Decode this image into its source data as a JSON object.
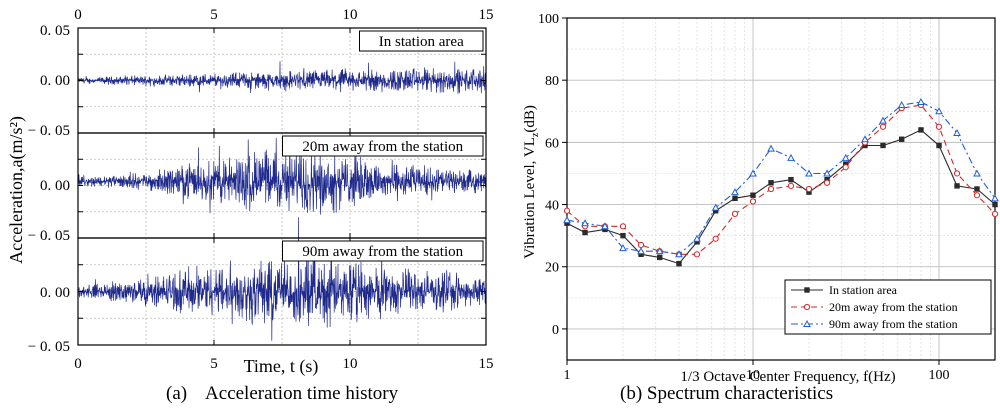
{
  "captions": {
    "a": "(a)    Acceleration time history",
    "b": "(b) Spectrum characteristics"
  },
  "colors": {
    "signal": "#1f2a8c",
    "grid": "#bdbdbd",
    "s1": "#2b2b2b",
    "s2": "#d62728",
    "s3": "#1f5fd6"
  },
  "chart_data": [
    {
      "type": "line",
      "name": "Acceleration time history",
      "xlabel": "Time, t (s)",
      "ylabel": "Acceleration,a(m/s²)",
      "xlim": [
        0,
        15
      ],
      "xticks": [
        0,
        5,
        10,
        15
      ],
      "ylim": [
        -0.05,
        0.05
      ],
      "yticks": [
        0.05,
        0.0,
        -0.05
      ],
      "ytick_labels": [
        "0. 05",
        "0. 00",
        "− 0. 05",
        "0. 00",
        "− 0. 05",
        "0. 00",
        "− 0. 05"
      ],
      "panels": [
        {
          "label": "In station area",
          "baseline": 0.0,
          "amplitude_envelope": [
            {
              "t": 0,
              "a": 0.002
            },
            {
              "t": 3,
              "a": 0.004
            },
            {
              "t": 6,
              "a": 0.006
            },
            {
              "t": 9,
              "a": 0.008
            },
            {
              "t": 12,
              "a": 0.009
            },
            {
              "t": 15,
              "a": 0.009
            }
          ]
        },
        {
          "label": "20m away from the station",
          "baseline": 0.004,
          "amplitude_envelope": [
            {
              "t": 0,
              "a": 0.003
            },
            {
              "t": 2.5,
              "a": 0.006
            },
            {
              "t": 5,
              "a": 0.016
            },
            {
              "t": 7,
              "a": 0.024
            },
            {
              "t": 9,
              "a": 0.022
            },
            {
              "t": 11,
              "a": 0.016
            },
            {
              "t": 13,
              "a": 0.01
            },
            {
              "t": 15,
              "a": 0.007
            }
          ]
        },
        {
          "label": "90m away from the station",
          "baseline": 0.0,
          "amplitude_envelope": [
            {
              "t": 0,
              "a": 0.004
            },
            {
              "t": 2,
              "a": 0.008
            },
            {
              "t": 4,
              "a": 0.016
            },
            {
              "t": 6,
              "a": 0.022
            },
            {
              "t": 8,
              "a": 0.025
            },
            {
              "t": 10,
              "a": 0.022
            },
            {
              "t": 12,
              "a": 0.016
            },
            {
              "t": 14,
              "a": 0.012
            },
            {
              "t": 15,
              "a": 0.01
            }
          ]
        }
      ]
    },
    {
      "type": "line",
      "name": "Spectrum characteristics",
      "xlabel": "1/3 Octave Center Frequency, f(Hz)",
      "ylabel": "Vibration Level, VLz(dB)",
      "ylabel_main": "Vibration Level, VL",
      "ylabel_sub": "z",
      "ylabel_tail": "(dB)",
      "xscale": "log",
      "xlim": [
        1,
        200
      ],
      "xticks": [
        1,
        10,
        100
      ],
      "ylim": [
        -10,
        100
      ],
      "yticks": [
        0,
        20,
        40,
        60,
        80,
        100
      ],
      "legend_position": "bottom-right",
      "x": [
        1,
        1.25,
        1.6,
        2,
        2.5,
        3.15,
        4,
        5,
        6.3,
        8,
        10,
        12.5,
        16,
        20,
        25,
        31.5,
        40,
        50,
        63,
        80,
        100,
        125,
        160,
        200
      ],
      "series": [
        {
          "name": "In station area",
          "marker": "square",
          "dash": "",
          "values": [
            34,
            31,
            32,
            30,
            24,
            23,
            21,
            28,
            38,
            42,
            43,
            47,
            48,
            44,
            48,
            53,
            59,
            59,
            61,
            64,
            59,
            46,
            45,
            40
          ]
        },
        {
          "name": "20m away from the station",
          "marker": "circle",
          "dash": "6,4",
          "values": [
            38,
            33,
            33,
            33,
            27,
            25,
            24,
            24,
            29,
            37,
            41,
            45,
            46,
            45,
            47,
            52,
            60,
            65,
            71,
            72,
            65,
            50,
            43,
            37
          ]
        },
        {
          "name": "90m away from the station",
          "marker": "triangle",
          "dash": "7,3,2,3",
          "values": [
            35,
            34,
            33,
            26,
            25,
            25,
            24,
            29,
            39,
            44,
            50,
            58,
            55,
            50,
            50,
            55,
            61,
            67,
            72,
            73,
            70,
            63,
            50,
            42
          ]
        }
      ]
    }
  ]
}
